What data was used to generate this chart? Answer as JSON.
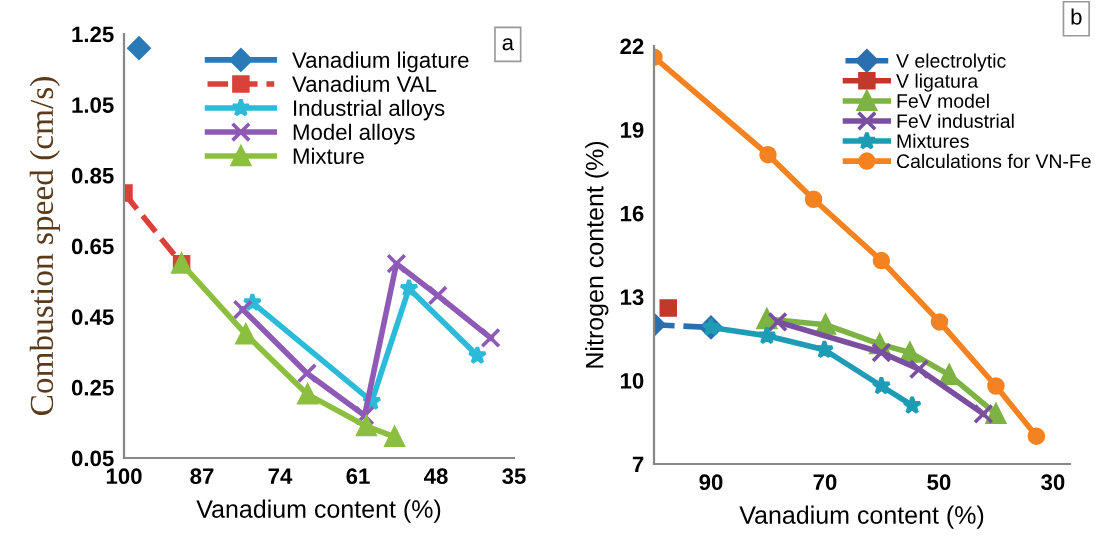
{
  "chart_data": [
    {
      "type": "line",
      "ylabel": "Combustion speed (cm/s)",
      "xlabel": "Vanadium content (%)",
      "xlim": [
        100,
        35
      ],
      "xticks": [
        100,
        87,
        74,
        61,
        48,
        35
      ],
      "ylim": [
        0.05,
        1.25
      ],
      "yticks": [
        0.05,
        0.25,
        0.45,
        0.65,
        0.85,
        1.05,
        1.25
      ],
      "grid": false,
      "legend": "top",
      "annotations": [
        "a"
      ],
      "series": [
        {
          "name": "Vanadium ligature",
          "color": "#2a7ab8",
          "marker": "diamond",
          "line_style": "solid",
          "x": [
            97.5
          ],
          "values": [
            1.21
          ]
        },
        {
          "name": "Vanadium VAL",
          "color": "#d9413a",
          "marker": "square",
          "line_style": "dashed",
          "x": [
            100,
            90.4
          ],
          "values": [
            0.8,
            0.6
          ]
        },
        {
          "name": "Industrial alloys",
          "color": "#2bbbd8",
          "marker": "star",
          "line_style": "solid",
          "x": [
            78.6,
            58.7,
            52.5,
            41.1
          ],
          "values": [
            0.49,
            0.21,
            0.53,
            0.34
          ]
        },
        {
          "name": "Model alloys",
          "color": "#8e5ab5",
          "marker": "cross",
          "line_style": "solid",
          "x": [
            80.2,
            69.5,
            59.9,
            54.6,
            47.7,
            38.9
          ],
          "values": [
            0.47,
            0.29,
            0.17,
            0.6,
            0.51,
            0.39
          ]
        },
        {
          "name": "Mixture",
          "color": "#8cbf3f",
          "marker": "triangle",
          "line_style": "solid",
          "x": [
            90.4,
            79.7,
            69.4,
            59.6,
            54.9
          ],
          "values": [
            0.6,
            0.4,
            0.23,
            0.14,
            0.11
          ]
        }
      ]
    },
    {
      "type": "line",
      "ylabel": "Nitrogen content (%)",
      "xlabel": "Vanadium content (%)",
      "xlim": [
        100,
        27
      ],
      "xticks": [
        90,
        70,
        50,
        30
      ],
      "ylim": [
        7,
        22
      ],
      "yticks": [
        7,
        10,
        13,
        16,
        19,
        22
      ],
      "grid": false,
      "legend": "top right",
      "annotations": [
        "b"
      ],
      "series": [
        {
          "name": "V electrolytic",
          "color": "#2a6fb0",
          "marker": "diamond",
          "line_style": "dashed",
          "x": [
            100,
            90
          ],
          "values": [
            12.0,
            11.9
          ]
        },
        {
          "name": "V ligatura",
          "color": "#c0392b",
          "marker": "square",
          "line_style": "solid",
          "x": [
            97.5
          ],
          "values": [
            12.6
          ]
        },
        {
          "name": "FeV model",
          "color": "#7cb342",
          "marker": "triangle",
          "line_style": "solid",
          "x": [
            80.2,
            69.9,
            60.4,
            55.1,
            48.2,
            40.0
          ],
          "values": [
            12.2,
            12.0,
            11.3,
            11.0,
            10.2,
            8.8
          ]
        },
        {
          "name": "FeV industrial",
          "color": "#7b4fa0",
          "marker": "cross",
          "line_style": "solid",
          "x": [
            78.3,
            60.1,
            53.5,
            42.2
          ],
          "values": [
            12.1,
            11.0,
            10.4,
            8.8
          ]
        },
        {
          "name": "Mixtures",
          "color": "#1e9bb5",
          "marker": "star",
          "line_style": "solid",
          "x": [
            90,
            80.2,
            70.1,
            60.1,
            54.7
          ],
          "values": [
            11.9,
            11.6,
            11.1,
            9.8,
            9.1
          ]
        },
        {
          "name": "Calculations for VN-Fe",
          "color": "#f58220",
          "marker": "circle",
          "line_style": "solid",
          "x": [
            100,
            80.0,
            72.0,
            60.1,
            49.9,
            40.0,
            32.9
          ],
          "values": [
            21.6,
            18.1,
            16.5,
            14.3,
            12.1,
            9.8,
            8.0
          ]
        }
      ]
    }
  ]
}
